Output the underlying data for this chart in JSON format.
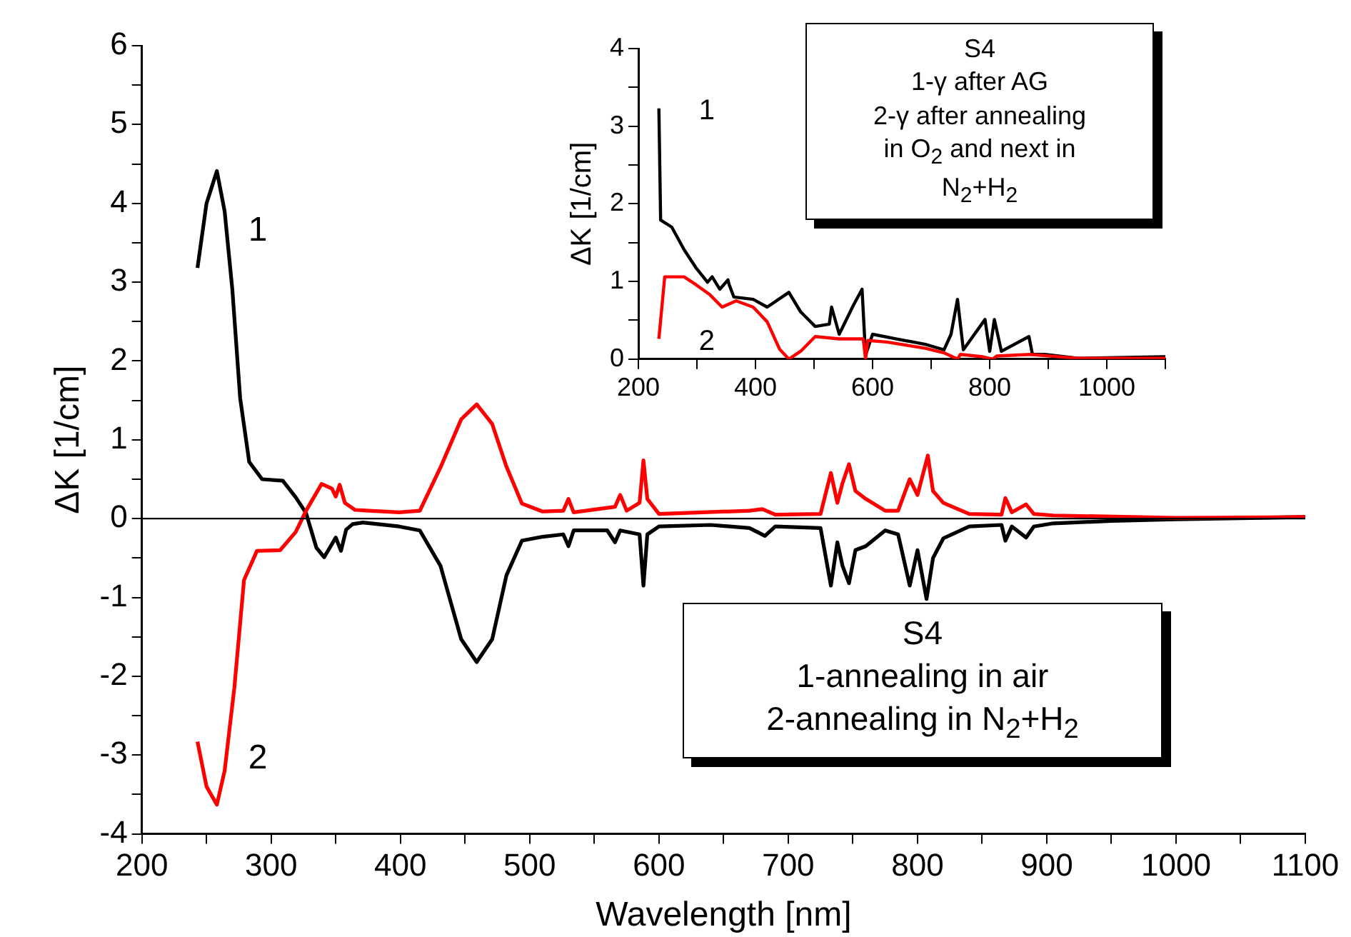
{
  "chart_data": [
    {
      "type": "line",
      "xlabel": "Wavelength [nm]",
      "ylabel": "ΔK [1/cm]",
      "xlim": [
        200,
        1100
      ],
      "ylim": [
        -4,
        6
      ],
      "xticks": [
        200,
        {
          "value": 250,
          "label": null
        },
        300,
        {
          "value": 350,
          "label": null
        },
        400,
        {
          "value": 450,
          "label": null
        },
        500,
        {
          "value": 550,
          "label": null
        },
        600,
        {
          "value": 650,
          "label": null
        },
        700,
        {
          "value": 750,
          "label": null
        },
        800,
        {
          "value": 850,
          "label": null
        },
        900,
        {
          "value": 950,
          "label": null
        },
        1000,
        {
          "value": 1050,
          "label": null
        },
        1100
      ],
      "yticks": [
        -4,
        {
          "value": -3.5,
          "label": null
        },
        -3,
        {
          "value": -2.5,
          "label": null
        },
        -2,
        {
          "value": -1.5,
          "label": null
        },
        -1,
        {
          "value": -0.5,
          "label": null
        },
        0,
        {
          "value": 0.5,
          "label": null
        },
        1,
        {
          "value": 1.5,
          "label": null
        },
        2,
        {
          "value": 2.5,
          "label": null
        },
        3,
        {
          "value": 3.5,
          "label": null
        },
        4,
        {
          "value": 4.5,
          "label": null
        },
        5,
        {
          "value": 5.5,
          "label": null
        },
        6
      ],
      "grid": false,
      "legend": false,
      "line_style": "solid",
      "marker": "none",
      "ref_lines": [
        {
          "axis": "y",
          "value": 0,
          "color": "#000000"
        }
      ],
      "annotations": [
        "S4\n1-annealing in air\n2-annealing in N$_{2}$+H$_{2}$"
      ],
      "series": [
        {
          "name": "1",
          "color": "#000000",
          "x": [
            243,
            250,
            258,
            264,
            270,
            276,
            283,
            293,
            309,
            319,
            327,
            335,
            341,
            350,
            354,
            358,
            363,
            371,
            399,
            415,
            431,
            447,
            459,
            471,
            482,
            494,
            510,
            526,
            530,
            534,
            560,
            566,
            570,
            585,
            588,
            591,
            600,
            640,
            670,
            682,
            690,
            725,
            733,
            738,
            742,
            747,
            752,
            760,
            775,
            785,
            794,
            800,
            807,
            812,
            820,
            840,
            865,
            868,
            873,
            884,
            890,
            905,
            950,
            1000,
            1100
          ],
          "values": [
            3.18,
            4.0,
            4.41,
            3.9,
            2.9,
            1.53,
            0.72,
            0.5,
            0.48,
            0.27,
            0.07,
            -0.37,
            -0.49,
            -0.24,
            -0.41,
            -0.14,
            -0.07,
            -0.05,
            -0.1,
            -0.15,
            -0.6,
            -1.53,
            -1.82,
            -1.53,
            -0.72,
            -0.28,
            -0.23,
            -0.2,
            -0.35,
            -0.15,
            -0.15,
            -0.3,
            -0.15,
            -0.2,
            -0.85,
            -0.2,
            -0.1,
            -0.08,
            -0.12,
            -0.22,
            -0.1,
            -0.12,
            -0.85,
            -0.3,
            -0.6,
            -0.82,
            -0.4,
            -0.35,
            -0.15,
            -0.2,
            -0.85,
            -0.4,
            -1.02,
            -0.5,
            -0.25,
            -0.1,
            -0.08,
            -0.28,
            -0.1,
            -0.24,
            -0.1,
            -0.06,
            -0.03,
            -0.01,
            0.02
          ]
        },
        {
          "name": "2",
          "color": "#ff0000",
          "x": [
            243,
            250,
            258,
            264,
            271.5,
            279,
            289,
            307,
            319,
            327,
            339,
            347,
            350,
            353,
            357,
            365,
            399,
            415,
            431,
            447,
            459,
            471,
            482,
            494,
            510,
            526,
            530,
            534,
            566,
            570,
            575,
            585,
            588,
            591,
            600,
            670,
            680,
            690,
            725,
            733,
            738,
            742,
            747,
            752,
            760,
            775,
            785,
            794,
            800,
            808,
            812,
            820,
            840,
            865,
            868,
            873,
            884,
            890,
            905,
            1000,
            1100
          ],
          "values": [
            -2.83,
            -3.4,
            -3.63,
            -3.2,
            -2.15,
            -0.78,
            -0.41,
            -0.4,
            -0.17,
            0.1,
            0.44,
            0.38,
            0.28,
            0.43,
            0.2,
            0.11,
            0.08,
            0.1,
            0.65,
            1.26,
            1.45,
            1.2,
            0.66,
            0.19,
            0.09,
            0.1,
            0.25,
            0.08,
            0.15,
            0.3,
            0.1,
            0.2,
            0.74,
            0.25,
            0.06,
            0.1,
            0.12,
            0.05,
            0.06,
            0.58,
            0.2,
            0.45,
            0.69,
            0.35,
            0.25,
            0.1,
            0.1,
            0.5,
            0.3,
            0.8,
            0.35,
            0.2,
            0.06,
            0.05,
            0.26,
            0.08,
            0.18,
            0.06,
            0.04,
            0.01,
            0.02
          ]
        }
      ]
    },
    {
      "type": "line",
      "ylabel": "ΔK [1/cm]",
      "xlim": [
        200,
        1100
      ],
      "ylim": [
        0,
        4
      ],
      "xticks": [
        200,
        {
          "value": 300,
          "label": null
        },
        400,
        {
          "value": 500,
          "label": null
        },
        600,
        {
          "value": 700,
          "label": null
        },
        800,
        {
          "value": 900,
          "label": null
        },
        1000,
        {
          "value": 1100,
          "label": null
        }
      ],
      "yticks": [
        0,
        {
          "value": 0.5,
          "label": null
        },
        1,
        {
          "value": 1.5,
          "label": null
        },
        2,
        {
          "value": 2.5,
          "label": null
        },
        3,
        {
          "value": 3.5,
          "label": null
        },
        4
      ],
      "grid": false,
      "legend": false,
      "line_style": "solid",
      "marker": "none",
      "annotations": [
        "S4\n1-γ after AG\n2-γ after annealing\nin O$_{2}$ and next in\nN$_{2}$+H$_{2}$"
      ],
      "series": [
        {
          "name": "1",
          "color": "#000000",
          "x": [
            235,
            238,
            257,
            278,
            298,
            318,
            326,
            339,
            353,
            355,
            363,
            396,
            420,
            457,
            477,
            502,
            526,
            530,
            543,
            567,
            582,
            588,
            600,
            641,
            690,
            722,
            734,
            745,
            755,
            792,
            800,
            808,
            820,
            867,
            873,
            894,
            951,
            1100
          ],
          "values": [
            3.23,
            1.79,
            1.7,
            1.41,
            1.18,
            0.99,
            1.06,
            0.9,
            1.02,
            0.96,
            0.8,
            0.77,
            0.67,
            0.86,
            0.61,
            0.42,
            0.45,
            0.67,
            0.32,
            0.69,
            0.9,
            0.05,
            0.32,
            0.26,
            0.19,
            0.12,
            0.32,
            0.77,
            0.12,
            0.51,
            0.1,
            0.51,
            0.1,
            0.29,
            0.06,
            0.06,
            0.01,
            0.03
          ]
        },
        {
          "name": "2",
          "color": "#ff0000",
          "x": [
            235,
            245,
            278,
            298,
            322,
            343,
            367,
            396,
            420,
            441,
            457,
            477,
            502,
            543,
            584,
            588,
            592,
            624,
            690,
            722,
            745,
            750,
            788,
            805,
            812,
            869,
            951,
            1100
          ],
          "values": [
            0.26,
            1.06,
            1.06,
            0.96,
            0.83,
            0.67,
            0.75,
            0.67,
            0.48,
            0.13,
            0,
            0.1,
            0.29,
            0.26,
            0.26,
            0,
            0.24,
            0.22,
            0.14,
            0.08,
            0,
            0.06,
            0.03,
            0,
            0.04,
            0.06,
            0.01,
            0.01
          ]
        }
      ]
    }
  ]
}
